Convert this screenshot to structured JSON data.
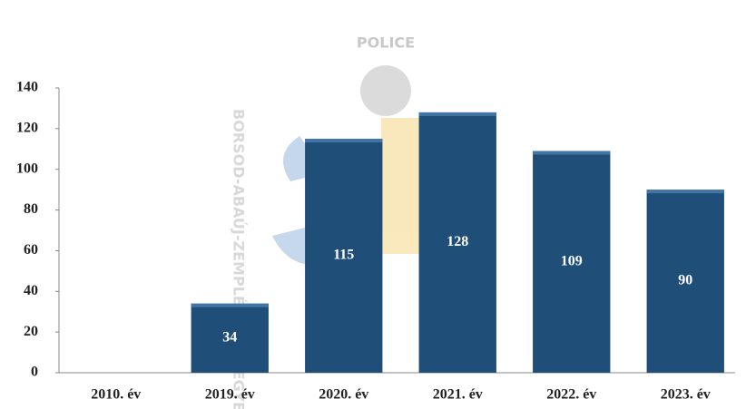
{
  "chart_data": {
    "type": "bar",
    "categories": [
      "2010. év",
      "2019. év",
      "2020. év",
      "2021. év",
      "2022. év",
      "2023. év"
    ],
    "values": [
      null,
      34,
      115,
      128,
      109,
      90
    ],
    "color": "#1f4e79",
    "ylim": [
      0,
      140
    ],
    "yticks": [
      0,
      20,
      40,
      60,
      80,
      100,
      120,
      140
    ],
    "grid": false,
    "watermark": [
      "POLICE",
      "BORSOD-ABAÚJ-ZEMPLÉN VÁRMEGYE"
    ]
  }
}
